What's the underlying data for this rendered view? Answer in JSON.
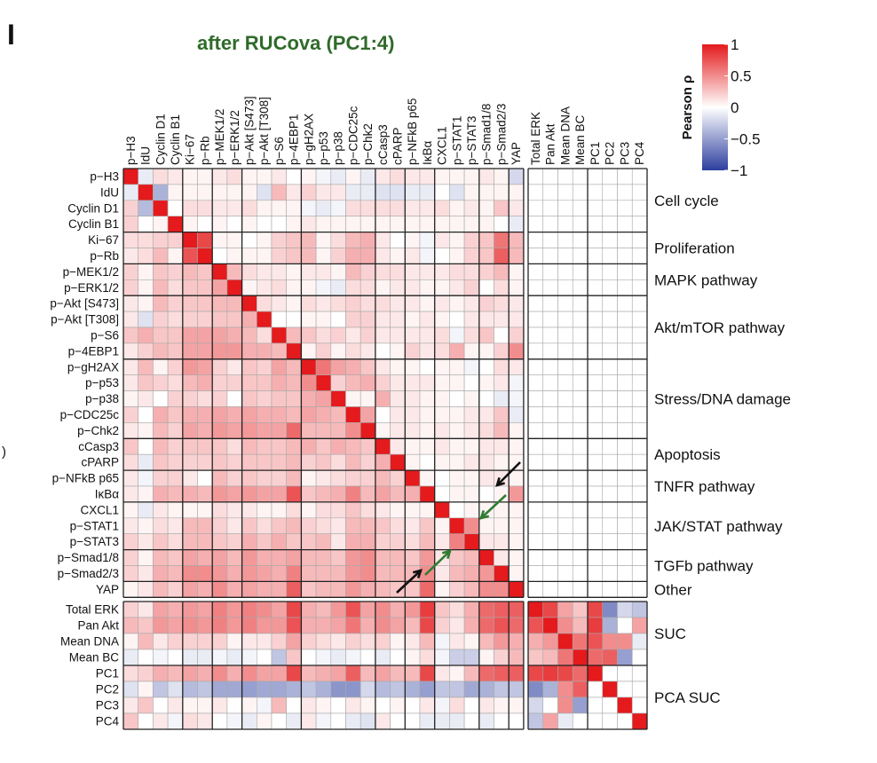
{
  "panel_letter": "I",
  "stray_mark": ")",
  "chart_data": {
    "type": "heatmap",
    "title": "after RUCova (PC1:4)",
    "title_color": "#2f6b2a",
    "colorbar": {
      "label": "Pearson ρ",
      "range": [
        -1,
        1
      ],
      "ticks": [
        "1",
        "0.5",
        "0",
        "−0.5",
        "−1"
      ],
      "tick_values": [
        1,
        0.5,
        0,
        -0.5,
        -1
      ],
      "colors": {
        "high": "#e41a1c",
        "mid": "#ffffff",
        "low": "#2c3e9e"
      }
    },
    "markers": [
      "p−H3",
      "IdU",
      "Cyclin D1",
      "Cyclin B1",
      "Ki−67",
      "p−Rb",
      "p−MEK1/2",
      "p−ERK1/2",
      "p−Akt [S473]",
      "p−Akt [T308]",
      "p−S6",
      "p−4EBP1",
      "p−gH2AX",
      "p−p53",
      "p−p38",
      "p−CDC25c",
      "p−Chk2",
      "cCasp3",
      "cPARP",
      "p−NFkB p65",
      "IκBα",
      "CXCL1",
      "p−STAT1",
      "p−STAT3",
      "p−Smad1/8",
      "p−Smad2/3",
      "YAP"
    ],
    "suc_vars": [
      "Total ERK",
      "Pan Akt",
      "Mean DNA",
      "Mean BC",
      "PC1",
      "PC2",
      "PC3",
      "PC4"
    ],
    "marker_groups": [
      {
        "name": "Cell cycle",
        "rows": [
          0,
          3
        ]
      },
      {
        "name": "Proliferation",
        "rows": [
          4,
          5
        ]
      },
      {
        "name": "MAPK pathway",
        "rows": [
          6,
          7
        ]
      },
      {
        "name": "Akt/mTOR pathway",
        "rows": [
          8,
          11
        ]
      },
      {
        "name": "Stress/DNA damage",
        "rows": [
          12,
          16
        ]
      },
      {
        "name": "Apoptosis",
        "rows": [
          17,
          18
        ]
      },
      {
        "name": "TNFR pathway",
        "rows": [
          19,
          20
        ]
      },
      {
        "name": "JAK/STAT pathway",
        "rows": [
          21,
          23
        ]
      },
      {
        "name": "TGFb pathway",
        "rows": [
          24,
          25
        ]
      },
      {
        "name": "Other",
        "rows": [
          26,
          26
        ]
      }
    ],
    "suc_groups": [
      {
        "name": "SUC",
        "rows": [
          0,
          3
        ]
      },
      {
        "name": "PCA SUC",
        "rows": [
          4,
          7
        ]
      }
    ],
    "marker_matrix": [
      [
        1,
        -0.1,
        0.15,
        0.1,
        0.05,
        0.05,
        0.1,
        0.15,
        0.05,
        0.05,
        0.1,
        0,
        0.05,
        -0.05,
        -0.1,
        0.05,
        -0.1,
        0.1,
        0.15,
        0.1,
        0.1,
        0.05,
        0.05,
        0.05,
        0.1,
        0.05,
        -0.2
      ],
      [
        -0.1,
        1,
        -0.4,
        0.05,
        0.05,
        0.05,
        0.05,
        0.05,
        0.05,
        -0.15,
        0.3,
        0.1,
        0.2,
        0.1,
        0.1,
        -0.1,
        -0.1,
        -0.15,
        -0.15,
        -0.1,
        -0.1,
        0,
        -0.15,
        0.05,
        0.05,
        0.05,
        0.05
      ],
      [
        0.2,
        -0.35,
        1,
        0,
        0.15,
        0.15,
        0.1,
        0.1,
        0.15,
        0.05,
        0.05,
        0.05,
        -0.05,
        -0.1,
        -0.05,
        0.15,
        0.15,
        0.15,
        0.15,
        0.1,
        0.1,
        0.15,
        0.05,
        0.1,
        0.05,
        0.25,
        0.1
      ],
      [
        0.2,
        0,
        0.05,
        1,
        0.05,
        0,
        0.05,
        0,
        0.05,
        0,
        0,
        0.05,
        0.1,
        0.05,
        0.05,
        0.05,
        0.05,
        0.05,
        0.05,
        0.05,
        0.05,
        0.05,
        0.05,
        0.05,
        0.05,
        0,
        -0.1
      ],
      [
        0.15,
        0.15,
        0.2,
        0.2,
        1,
        0.8,
        0.05,
        0.05,
        0,
        0.05,
        0.2,
        0.25,
        0.3,
        0.05,
        0.15,
        0.3,
        0.35,
        0.1,
        0,
        0.05,
        -0.05,
        0.1,
        0.05,
        0.2,
        0.25,
        0.6,
        0.3
      ],
      [
        0.1,
        0.15,
        0.3,
        0.05,
        0.75,
        1,
        0,
        0.05,
        0.05,
        0.05,
        0.2,
        0.25,
        0.3,
        0.05,
        0.2,
        0.35,
        0.35,
        0.1,
        0.05,
        0.1,
        -0.05,
        0,
        0.05,
        0.2,
        0.25,
        0.7,
        0.3
      ],
      [
        0.2,
        0.05,
        0.25,
        0.2,
        0.3,
        0.25,
        1,
        0.3,
        0.15,
        0.1,
        0.1,
        0.05,
        0.1,
        0.1,
        0.05,
        0.3,
        0.2,
        0.15,
        0.15,
        0.1,
        0.1,
        0.1,
        0.15,
        0.15,
        0.2,
        0.3,
        0.05
      ],
      [
        0.2,
        0.05,
        0.3,
        0.15,
        0.25,
        0.25,
        0.4,
        1,
        0.05,
        0.1,
        0.15,
        0.05,
        0.05,
        -0.05,
        -0.1,
        0.15,
        0.15,
        0.05,
        0.1,
        0.1,
        0.05,
        0.05,
        0.1,
        0.2,
        0,
        0.15,
        0.05
      ],
      [
        0.1,
        0.05,
        0.3,
        0.2,
        0.25,
        0.25,
        0.3,
        0.3,
        1,
        0.15,
        0.1,
        0.05,
        0.15,
        0.1,
        0.15,
        0.2,
        0.15,
        0.15,
        0.1,
        0.1,
        0.05,
        0.1,
        0.05,
        0.1,
        0.2,
        0.15,
        0.1
      ],
      [
        0.1,
        -0.15,
        0.2,
        0.15,
        0.2,
        0.2,
        0.25,
        0.25,
        0.35,
        1,
        0,
        0,
        0.05,
        0.05,
        0,
        0.2,
        0.2,
        0.1,
        0.1,
        0.05,
        0.1,
        0.05,
        0,
        0.1,
        0.1,
        0.1,
        0.1
      ],
      [
        0.25,
        0.35,
        0.25,
        0.25,
        0.4,
        0.4,
        0.4,
        0.35,
        0.3,
        0.15,
        1,
        0.3,
        0.25,
        0.15,
        0.2,
        0.1,
        0.2,
        0.1,
        0.1,
        0.1,
        0.1,
        0.15,
        -0.05,
        0.15,
        0.25,
        0,
        0.2
      ],
      [
        0.1,
        0.2,
        0.3,
        0.25,
        0.4,
        0.4,
        0.45,
        0.45,
        0.35,
        0.35,
        0.3,
        1,
        0.05,
        0.2,
        0.05,
        0.15,
        0.1,
        0,
        0.05,
        0.2,
        0.1,
        0.15,
        0.35,
        0.05,
        0.05,
        0.2,
        0.5
      ],
      [
        0.1,
        0.3,
        0.05,
        0.2,
        0.45,
        0.4,
        0.2,
        0.1,
        0.25,
        0.2,
        0.4,
        0.3,
        1,
        0.6,
        0.4,
        0.35,
        0.25,
        0.1,
        0.05,
        0.05,
        0,
        0.05,
        0.05,
        -0.05,
        0,
        0.15,
        0.1
      ],
      [
        0.1,
        0.25,
        0.2,
        0.15,
        0.3,
        0.35,
        0.2,
        0.2,
        0.25,
        0.25,
        0.35,
        0.3,
        0.5,
        1,
        0.2,
        0.3,
        0.35,
        0.2,
        0.1,
        0.1,
        0.1,
        0.05,
        0.05,
        0,
        0.05,
        0.1,
        -0.05
      ],
      [
        0.05,
        0.1,
        0,
        0.2,
        0.2,
        0.15,
        0.2,
        0,
        0.25,
        0.2,
        0.25,
        0.25,
        0.35,
        0.4,
        1,
        0.05,
        0.05,
        0.35,
        0.1,
        0.1,
        0.05,
        0.05,
        0,
        0.05,
        0,
        -0.1,
        -0.05
      ],
      [
        0.2,
        0,
        0.35,
        0.25,
        0.35,
        0.35,
        0.4,
        0.35,
        0.4,
        0.35,
        0.35,
        0.3,
        0.4,
        0.35,
        0.3,
        1,
        0.4,
        0,
        0.1,
        0.1,
        0.05,
        0.05,
        0.05,
        0.1,
        0.1,
        0.25,
        -0.1
      ],
      [
        0.1,
        0.05,
        0.3,
        0.2,
        0.4,
        0.35,
        0.45,
        0.4,
        0.45,
        0.4,
        0.4,
        0.65,
        0.3,
        0.3,
        0.3,
        0.5,
        1,
        0.05,
        0.1,
        0.1,
        0.05,
        0.1,
        0.05,
        0.1,
        0.15,
        0.3,
        0.05
      ],
      [
        0.25,
        0,
        0.3,
        0.2,
        0.25,
        0.25,
        0.25,
        0.15,
        0.3,
        0.25,
        0.25,
        0.3,
        0.35,
        0.25,
        0.35,
        0.3,
        0.25,
        1,
        0.1,
        0.05,
        0.05,
        0.1,
        0.05,
        0.05,
        0.1,
        0.1,
        0.05
      ],
      [
        0.15,
        -0.1,
        0.25,
        0.2,
        0.2,
        0.2,
        0.25,
        0.2,
        0.25,
        0.25,
        0.25,
        0.3,
        0.2,
        0.25,
        0.15,
        0.3,
        0.2,
        0.35,
        1,
        0.05,
        0,
        0.05,
        0.05,
        0.1,
        0.1,
        0.05,
        0.05
      ],
      [
        0.1,
        -0.05,
        0.2,
        0.2,
        0.1,
        0,
        0.3,
        0.2,
        0.25,
        0.2,
        0.2,
        0.3,
        0.05,
        0.1,
        0.15,
        0.2,
        0.2,
        0.3,
        0.2,
        1,
        0.05,
        0,
        0.05,
        0.05,
        0.1,
        0.1,
        0.05
      ],
      [
        0.1,
        0.05,
        0.35,
        0.3,
        0.35,
        0.3,
        0.45,
        0.4,
        0.45,
        0.4,
        0.4,
        0.75,
        0.25,
        0.3,
        0.35,
        0.55,
        0.3,
        0.4,
        0.3,
        0.35,
        1,
        0,
        0.05,
        0.05,
        0,
        0.05,
        0.45
      ],
      [
        0.05,
        -0.1,
        0.1,
        0.05,
        0.05,
        0.05,
        0.15,
        0.1,
        0.1,
        0.05,
        0.05,
        0.15,
        0.05,
        0.15,
        0.15,
        0.25,
        0.15,
        0.1,
        0.05,
        0.05,
        0.05,
        1,
        0,
        0.05,
        0.05,
        0.05,
        0.05
      ],
      [
        0.1,
        0.05,
        0.15,
        0.1,
        0.3,
        0.3,
        0.2,
        0.1,
        0.25,
        0.15,
        0.25,
        0.3,
        0.2,
        0.15,
        0.1,
        0.3,
        0.3,
        0.25,
        0.15,
        0.1,
        0.25,
        0.05,
        1,
        0.5,
        0.05,
        0.05,
        0.05
      ],
      [
        0.2,
        0.1,
        0.25,
        0.15,
        0.3,
        0.3,
        0.25,
        0.2,
        0.35,
        0.25,
        0.35,
        0.25,
        0.25,
        0.3,
        0.1,
        0.35,
        0.35,
        0.2,
        0.2,
        0.15,
        0.3,
        0.1,
        0.55,
        1,
        0.1,
        0.1,
        0.05
      ],
      [
        0.2,
        0.05,
        0.3,
        0.25,
        0.4,
        0.35,
        0.4,
        0.3,
        0.45,
        0.35,
        0.35,
        0.4,
        0.3,
        0.3,
        0.25,
        0.45,
        0.5,
        0.3,
        0.3,
        0.25,
        0.45,
        0.1,
        0.25,
        0.3,
        1,
        0.1,
        0.05
      ],
      [
        0.2,
        0.1,
        0.35,
        0.3,
        0.5,
        0.5,
        0.45,
        0.35,
        0.45,
        0.4,
        0.35,
        0.55,
        0.3,
        0.3,
        0.3,
        0.45,
        0.5,
        0.3,
        0.3,
        0.3,
        0.5,
        0.1,
        0.3,
        0.35,
        0.45,
        1,
        0.05
      ],
      [
        0.05,
        0.1,
        0.3,
        0.2,
        0.4,
        0.35,
        0.5,
        0.35,
        0.4,
        0.35,
        0.35,
        0.7,
        0.25,
        0.3,
        0.3,
        0.45,
        0.35,
        0.3,
        0.25,
        0.25,
        0.65,
        0.05,
        0.2,
        0.3,
        0.5,
        0.5,
        1
      ]
    ],
    "suc_vs_markers": [
      [
        0.2,
        0.1,
        0.4,
        0.35,
        0.45,
        0.4,
        0.55,
        0.45,
        0.55,
        0.5,
        0.4,
        0.8,
        0.35,
        0.3,
        0.45,
        0.75,
        0.4,
        0.5,
        0.35,
        0.45,
        0.85,
        0.25,
        0.15,
        0.35,
        0.65,
        0.7,
        0.7
      ],
      [
        0.3,
        0.25,
        0.45,
        0.4,
        0.5,
        0.45,
        0.55,
        0.45,
        0.55,
        0.45,
        0.45,
        0.75,
        0.35,
        0.35,
        0.4,
        0.6,
        0.35,
        0.5,
        0.4,
        0.3,
        0.8,
        0.2,
        0.1,
        0.35,
        0.65,
        0.75,
        0.65
      ],
      [
        0.05,
        0.3,
        0.1,
        0.2,
        0.2,
        0.2,
        0.2,
        0.05,
        0.1,
        0.1,
        0.2,
        0.4,
        0.2,
        0.15,
        0.1,
        0.2,
        0.15,
        0.2,
        0.05,
        0.1,
        0.3,
        -0.05,
        0.1,
        0.05,
        0.3,
        0.45,
        0.35
      ],
      [
        -0.1,
        0,
        -0.05,
        0,
        -0.1,
        -0.1,
        -0.05,
        -0.1,
        -0.05,
        0,
        -0.3,
        0.25,
        0,
        -0.05,
        -0.1,
        -0.05,
        0,
        -0.1,
        0,
        0.05,
        0.15,
        -0.05,
        -0.25,
        -0.25,
        0.05,
        0.2,
        0.3
      ],
      [
        0.15,
        0.2,
        0.35,
        0.3,
        0.4,
        0.35,
        0.5,
        0.35,
        0.5,
        0.4,
        0.4,
        0.8,
        0.3,
        0.35,
        0.4,
        0.7,
        0.3,
        0.4,
        0.3,
        0.3,
        0.8,
        0.1,
        0.05,
        0.3,
        0.65,
        0.7,
        0.7
      ],
      [
        -0.15,
        0.05,
        -0.3,
        -0.15,
        -0.35,
        -0.3,
        -0.45,
        -0.45,
        -0.5,
        -0.45,
        -0.45,
        -0.4,
        -0.3,
        -0.4,
        -0.55,
        -0.55,
        -0.2,
        -0.35,
        -0.3,
        -0.4,
        -0.5,
        -0.3,
        -0.3,
        -0.45,
        -0.4,
        -0.3,
        -0.3
      ],
      [
        0.1,
        0.25,
        0,
        0.1,
        0.05,
        0.05,
        0.1,
        0,
        0.05,
        -0.05,
        0.3,
        0,
        0.1,
        0.05,
        0,
        0.1,
        0.05,
        0,
        0.05,
        0,
        0.1,
        -0.05,
        0.15,
        0,
        0.1,
        0.05,
        0.05
      ],
      [
        0.25,
        0,
        0.1,
        -0.05,
        0.15,
        0.1,
        0,
        -0.05,
        -0.1,
        0.05,
        0,
        -0.1,
        0.1,
        -0.05,
        0,
        -0.1,
        -0.15,
        0.1,
        0,
        0,
        -0.1,
        -0.1,
        -0.1,
        0,
        -0.1,
        0,
        0
      ]
    ],
    "suc_matrix": [
      [
        1,
        0.8,
        0.4,
        0.25,
        0.8,
        -0.6,
        -0.2,
        -0.3
      ],
      [
        0.75,
        1,
        0.5,
        0.3,
        0.85,
        -0.4,
        0,
        0.4
      ],
      [
        0.35,
        0.45,
        1,
        0.6,
        0.75,
        0.5,
        0.5,
        -0.1
      ],
      [
        0.25,
        0.3,
        0.6,
        1,
        0.65,
        0.7,
        -0.5,
        0
      ],
      [
        0.8,
        0.85,
        0.8,
        0.65,
        1,
        0,
        0,
        0
      ],
      [
        -0.6,
        -0.4,
        0.5,
        0.7,
        0,
        1,
        0,
        0
      ],
      [
        -0.2,
        0,
        0.5,
        -0.5,
        0,
        0,
        1,
        0
      ],
      [
        -0.3,
        0.4,
        -0.1,
        0,
        0,
        0,
        0,
        1
      ]
    ],
    "markers_vs_suc": "blank",
    "annotations": {
      "arrow_colors": [
        "#111111",
        "#2e7d32"
      ]
    }
  }
}
